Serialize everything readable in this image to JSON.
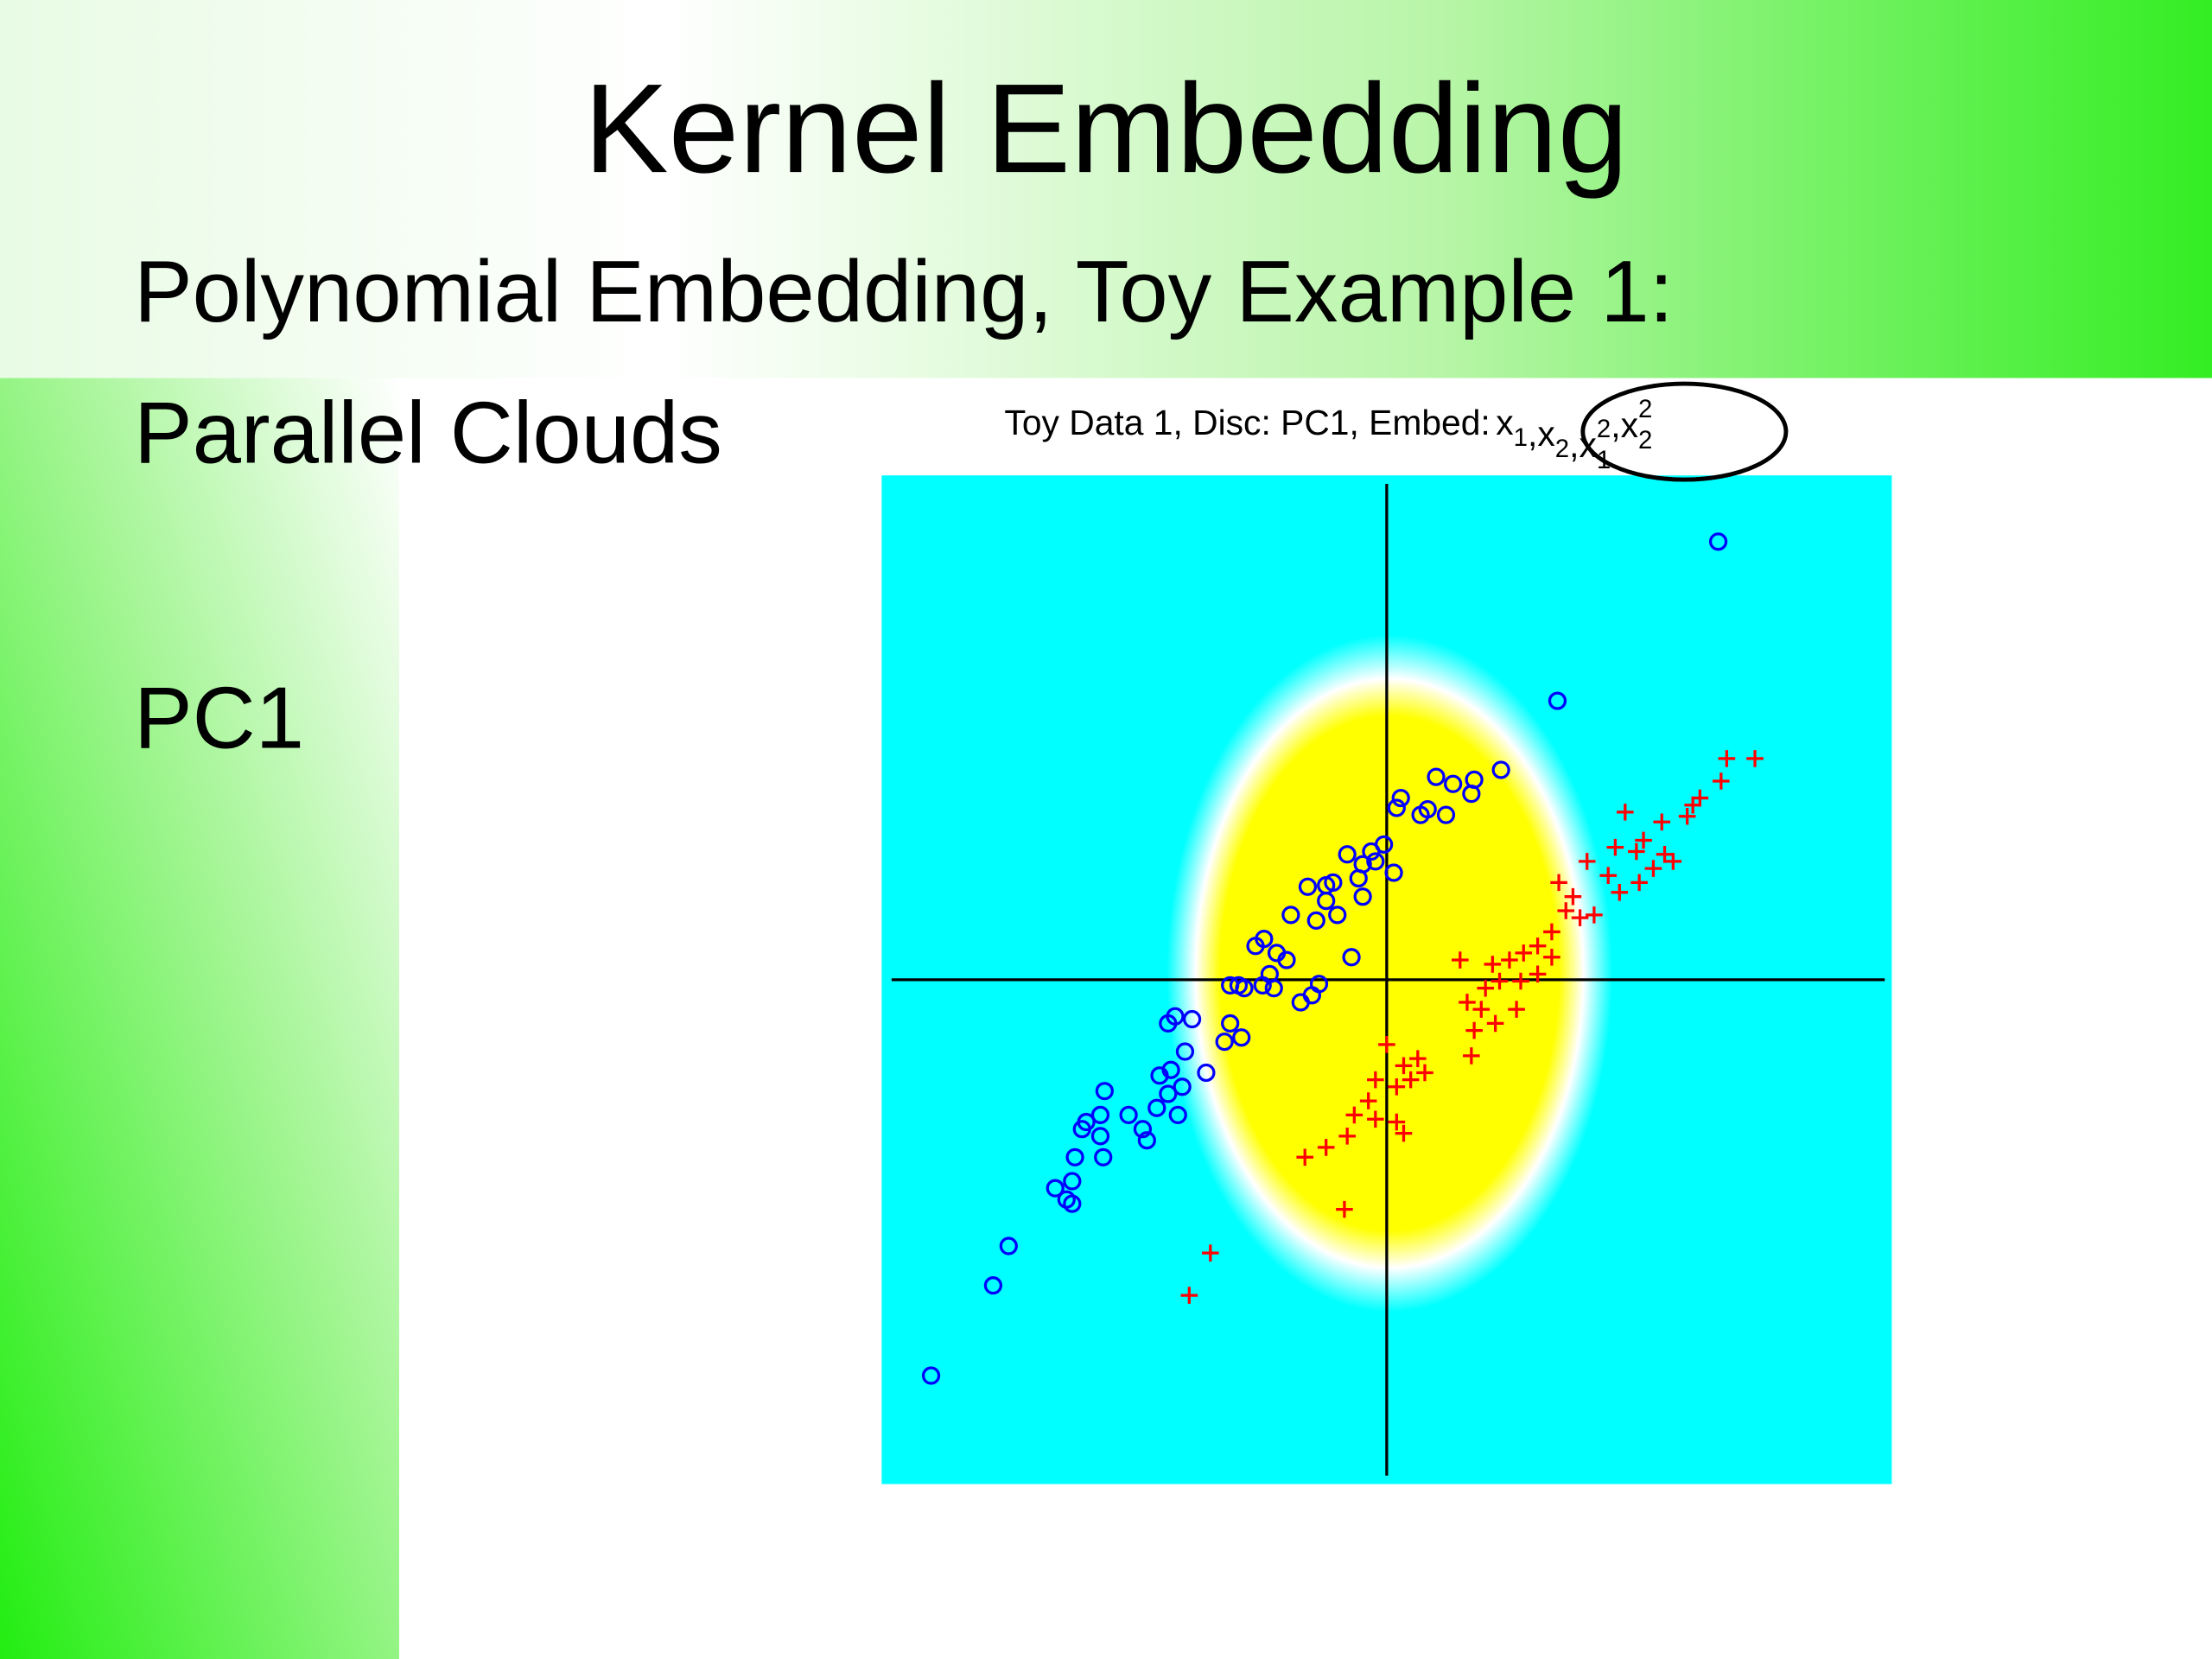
{
  "slide": {
    "title": "Kernel Embedding",
    "lines": [
      "Polynomial Embedding, Toy Example 1:",
      "Parallel Clouds",
      "PC1"
    ]
  },
  "chart_data": {
    "type": "scatter",
    "title": "Toy Data 1,   Disc: PC1,   Embed:",
    "embed_terms": [
      {
        "base": "x",
        "sub": "1"
      },
      {
        "base": "x",
        "sub": "2"
      },
      {
        "base": "x",
        "sub": "1",
        "sup": "2"
      },
      {
        "base": "x",
        "sub": "2",
        "sup": "2"
      }
    ],
    "embed_separator": ",",
    "xlim": [
      -3.58,
      3.58
    ],
    "ylim": [
      -3.58,
      3.58
    ],
    "background_color": "#00ffff",
    "series": [
      {
        "marker": "o",
        "color": "#0000ff",
        "x": [
          2.35,
          1.21,
          0.81,
          0.62,
          0.47,
          0.35,
          0.6,
          0.42,
          0.24,
          0.29,
          0.1,
          0.07,
          -0.02,
          -0.11,
          -0.08,
          -0.28,
          -0.17,
          0.05,
          -0.2,
          -0.38,
          -0.43,
          -0.56,
          -0.17,
          -0.35,
          -0.5,
          -0.43,
          -0.68,
          -0.25,
          -0.87,
          -0.93,
          -0.78,
          -0.71,
          -0.83,
          -0.88,
          -1.05,
          -1.11,
          -1.01,
          -0.48,
          -0.53,
          -0.61,
          -0.8,
          -1.11,
          -1.03,
          -1.15,
          -1.38,
          -1.5,
          -1.55,
          -1.43,
          -1.28,
          -1.45,
          -1.53,
          -1.61,
          -1.55,
          -1.63,
          -1.48,
          -1.73,
          -1.7,
          -1.83,
          -2.0,
          -2.03,
          -2.13,
          -2.16,
          -2.03,
          -2.01,
          -2.21,
          -2.23,
          -2.35,
          -2.27,
          -2.23,
          -2.68,
          -2.79,
          -3.23
        ],
        "values": [
          3.11,
          1.98,
          1.49,
          1.42,
          1.39,
          1.44,
          1.32,
          1.17,
          1.17,
          1.21,
          1.29,
          1.22,
          0.96,
          0.91,
          0.84,
          0.89,
          0.82,
          0.76,
          0.72,
          0.69,
          0.67,
          0.66,
          0.59,
          0.46,
          0.42,
          0.56,
          0.46,
          0.16,
          0.29,
          0.24,
          0.19,
          0.14,
          0.04,
          -0.04,
          -0.04,
          -0.04,
          -0.06,
          -0.03,
          -0.11,
          -0.16,
          -0.06,
          -0.31,
          -0.41,
          -0.44,
          -0.28,
          -0.26,
          -0.31,
          -0.51,
          -0.66,
          -0.76,
          -0.64,
          -0.68,
          -0.81,
          -0.91,
          -0.96,
          -1.06,
          -1.14,
          -0.96,
          -0.79,
          -0.96,
          -1.01,
          -1.06,
          -1.11,
          -1.26,
          -1.26,
          -1.43,
          -1.48,
          -1.56,
          -1.59,
          -1.89,
          -2.17,
          -2.81
        ]
      },
      {
        "marker": "+",
        "color": "#ff0000",
        "x": [
          2.61,
          2.41,
          2.37,
          2.22,
          2.17,
          2.13,
          1.95,
          1.69,
          1.82,
          1.77,
          1.62,
          1.97,
          2.03,
          1.89,
          1.42,
          1.57,
          1.79,
          1.65,
          1.22,
          1.32,
          1.27,
          1.37,
          1.47,
          1.17,
          1.07,
          0.97,
          1.17,
          0.87,
          0.75,
          0.52,
          1.07,
          0.95,
          0.8,
          0.7,
          0.57,
          0.67,
          0.92,
          0.77,
          0.62,
          0.6,
          0.0,
          0.22,
          0.12,
          0.27,
          0.17,
          -0.08,
          0.07,
          -0.13,
          -0.23,
          -0.08,
          0.07,
          0.12,
          -0.28,
          -0.43,
          -0.58,
          -0.3,
          -1.25,
          -1.4
        ],
        "values": [
          1.57,
          1.57,
          1.41,
          1.29,
          1.24,
          1.16,
          1.12,
          1.19,
          0.99,
          0.91,
          0.94,
          0.89,
          0.84,
          0.79,
          0.84,
          0.74,
          0.69,
          0.62,
          0.69,
          0.59,
          0.49,
          0.44,
          0.46,
          0.34,
          0.24,
          0.19,
          0.16,
          0.14,
          0.11,
          0.14,
          0.04,
          -0.01,
          -0.01,
          -0.06,
          -0.16,
          -0.21,
          -0.21,
          -0.31,
          -0.36,
          -0.54,
          -0.46,
          -0.56,
          -0.61,
          -0.66,
          -0.71,
          -0.71,
          -0.76,
          -0.86,
          -0.96,
          -0.99,
          -1.01,
          -1.09,
          -1.11,
          -1.19,
          -1.26,
          -1.63,
          -1.94,
          -2.24
        ]
      }
    ]
  }
}
